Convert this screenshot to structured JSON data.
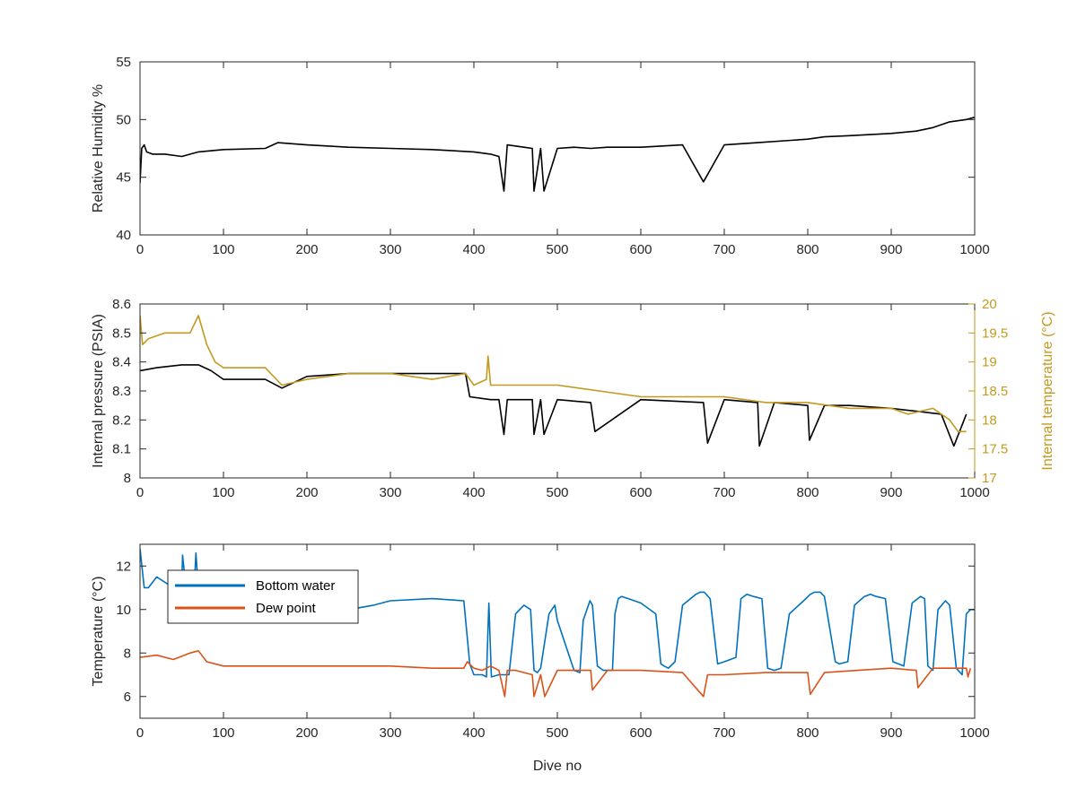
{
  "colors": {
    "black": "#000000",
    "tan": "#C39A1E",
    "blue": "#0072BD",
    "orange": "#D95319",
    "axis": "#262626"
  },
  "chart_data": [
    {
      "type": "line",
      "xlabel": "",
      "ylabel": "Relative Humidity %",
      "xlim": [
        0,
        1000
      ],
      "ylim": [
        40,
        55
      ],
      "xticks": [
        "0",
        "100",
        "200",
        "300",
        "400",
        "500",
        "600",
        "700",
        "800",
        "900",
        "1000"
      ],
      "yticks": [
        "40",
        "45",
        "50",
        "55"
      ],
      "series": [
        {
          "color": "#000000",
          "x": [
            0,
            2,
            5,
            8,
            15,
            30,
            50,
            70,
            100,
            150,
            165,
            200,
            250,
            300,
            350,
            400,
            420,
            430,
            436,
            440,
            460,
            470,
            472,
            480,
            484,
            500,
            520,
            540,
            560,
            600,
            650,
            675,
            700,
            740,
            780,
            800,
            820,
            850,
            900,
            930,
            950,
            970,
            990,
            1000
          ],
          "y": [
            44.5,
            47.5,
            47.8,
            47.2,
            47.0,
            47.0,
            46.8,
            47.2,
            47.4,
            47.5,
            48.0,
            47.8,
            47.6,
            47.5,
            47.4,
            47.2,
            47.0,
            46.8,
            43.8,
            47.8,
            47.6,
            47.5,
            43.8,
            47.5,
            43.8,
            47.5,
            47.6,
            47.5,
            47.6,
            47.6,
            47.8,
            44.6,
            47.8,
            48.0,
            48.2,
            48.3,
            48.5,
            48.6,
            48.8,
            49.0,
            49.3,
            49.8,
            50.0,
            50.2
          ]
        }
      ]
    },
    {
      "type": "line",
      "xlabel": "",
      "ylabel": "Internal pressure (PSIA)",
      "y2label": "Internal temperature (°C)",
      "xlim": [
        0,
        1000
      ],
      "ylim": [
        8,
        8.6
      ],
      "y2lim": [
        17,
        20
      ],
      "xticks": [
        "0",
        "100",
        "200",
        "300",
        "400",
        "500",
        "600",
        "700",
        "800",
        "900",
        "1000"
      ],
      "yticks": [
        "8",
        "8.1",
        "8.2",
        "8.3",
        "8.4",
        "8.5",
        "8.6"
      ],
      "y2ticks": [
        "17",
        "17.5",
        "18",
        "18.5",
        "19",
        "19.5",
        "20"
      ],
      "series": [
        {
          "axis": "left",
          "color": "#000000",
          "x": [
            0,
            20,
            50,
            70,
            85,
            100,
            150,
            170,
            200,
            250,
            300,
            350,
            390,
            395,
            420,
            430,
            436,
            440,
            470,
            472,
            480,
            484,
            500,
            540,
            545,
            600,
            675,
            680,
            700,
            740,
            742,
            760,
            800,
            802,
            820,
            850,
            900,
            930,
            960,
            975,
            990
          ],
          "y": [
            8.37,
            8.38,
            8.39,
            8.39,
            8.37,
            8.34,
            8.34,
            8.31,
            8.35,
            8.36,
            8.36,
            8.36,
            8.36,
            8.28,
            8.27,
            8.27,
            8.15,
            8.27,
            8.27,
            8.15,
            8.27,
            8.15,
            8.27,
            8.26,
            8.16,
            8.27,
            8.26,
            8.12,
            8.27,
            8.26,
            8.11,
            8.26,
            8.25,
            8.13,
            8.25,
            8.25,
            8.24,
            8.23,
            8.22,
            8.11,
            8.22
          ]
        },
        {
          "axis": "right",
          "color": "#C39A1E",
          "x": [
            0,
            3,
            10,
            30,
            60,
            70,
            80,
            90,
            100,
            150,
            170,
            200,
            250,
            300,
            350,
            390,
            400,
            415,
            417,
            420,
            450,
            500,
            550,
            600,
            650,
            700,
            750,
            800,
            850,
            900,
            920,
            950,
            970,
            980,
            990
          ],
          "y": [
            19.8,
            19.3,
            19.4,
            19.5,
            19.5,
            19.8,
            19.3,
            19.0,
            18.9,
            18.9,
            18.6,
            18.7,
            18.8,
            18.8,
            18.7,
            18.8,
            18.6,
            18.7,
            19.1,
            18.6,
            18.6,
            18.6,
            18.5,
            18.4,
            18.4,
            18.4,
            18.3,
            18.3,
            18.2,
            18.2,
            18.1,
            18.2,
            18.0,
            17.8,
            17.8
          ]
        }
      ]
    },
    {
      "type": "line",
      "xlabel": "Dive no",
      "ylabel": "Temperature (°C)",
      "xlim": [
        0,
        1000
      ],
      "ylim": [
        5,
        13
      ],
      "xticks": [
        "0",
        "100",
        "200",
        "300",
        "400",
        "500",
        "600",
        "700",
        "800",
        "900",
        "1000"
      ],
      "yticks": [
        "6",
        "8",
        "10",
        "12"
      ],
      "legend": {
        "position": "top-left"
      },
      "series": [
        {
          "name": "Bottom water",
          "color": "#0072BD",
          "x": [
            0,
            5,
            10,
            20,
            40,
            50,
            51,
            55,
            65,
            67,
            70,
            80,
            100,
            150,
            200,
            250,
            280,
            300,
            350,
            388,
            395,
            400,
            410,
            415,
            418,
            421,
            430,
            442,
            450,
            460,
            468,
            472,
            476,
            480,
            490,
            497,
            500,
            520,
            527,
            531,
            539,
            542,
            548,
            555,
            566,
            569,
            573,
            577,
            585,
            600,
            618,
            624,
            628,
            633,
            641,
            650,
            666,
            671,
            676,
            683,
            692,
            700,
            714,
            720,
            727,
            735,
            745,
            752,
            760,
            768,
            778,
            795,
            803,
            808,
            815,
            820,
            833,
            838,
            848,
            856,
            868,
            875,
            882,
            893,
            902,
            915,
            925,
            935,
            940,
            944,
            950,
            956,
            965,
            970,
            978,
            985,
            990,
            995,
            1000
          ],
          "y": [
            12.8,
            11.0,
            11.0,
            11.5,
            11.0,
            11.0,
            12.5,
            11.0,
            11.0,
            12.6,
            10.9,
            10.8,
            10.6,
            10.4,
            10.2,
            10.0,
            10.2,
            10.4,
            10.5,
            10.4,
            7.5,
            7.0,
            7.0,
            6.9,
            10.3,
            6.9,
            7.0,
            7.0,
            9.8,
            10.2,
            10.0,
            7.2,
            7.1,
            7.3,
            9.8,
            10.2,
            9.5,
            7.2,
            7.1,
            9.5,
            10.4,
            10.2,
            7.4,
            7.2,
            7.2,
            9.8,
            10.5,
            10.6,
            10.5,
            10.3,
            9.8,
            7.5,
            7.4,
            7.3,
            7.6,
            10.2,
            10.7,
            10.8,
            10.8,
            10.5,
            7.5,
            7.6,
            7.8,
            10.5,
            10.7,
            10.6,
            10.5,
            7.3,
            7.2,
            7.3,
            9.8,
            10.4,
            10.7,
            10.8,
            10.8,
            10.6,
            7.6,
            7.5,
            7.6,
            10.2,
            10.6,
            10.7,
            10.6,
            10.5,
            7.6,
            7.4,
            10.3,
            10.6,
            10.5,
            7.4,
            7.2,
            10.0,
            10.4,
            10.2,
            7.3,
            7.0,
            9.8,
            10.0,
            10.0
          ]
        },
        {
          "name": "Dew point",
          "color": "#D95319",
          "x": [
            0,
            20,
            40,
            60,
            70,
            80,
            100,
            150,
            200,
            250,
            300,
            350,
            388,
            392,
            400,
            410,
            420,
            430,
            437,
            440,
            450,
            470,
            472,
            480,
            485,
            500,
            540,
            542,
            560,
            600,
            650,
            675,
            680,
            700,
            750,
            800,
            803,
            820,
            860,
            900,
            930,
            932,
            950,
            970,
            990,
            992,
            995
          ],
          "y": [
            7.8,
            7.9,
            7.7,
            8.0,
            8.1,
            7.6,
            7.4,
            7.4,
            7.4,
            7.4,
            7.4,
            7.3,
            7.3,
            7.6,
            7.3,
            7.2,
            7.4,
            7.2,
            6.0,
            7.2,
            7.2,
            7.0,
            6.0,
            7.0,
            6.0,
            7.2,
            7.2,
            6.3,
            7.2,
            7.2,
            7.1,
            6.0,
            7.0,
            7.0,
            7.1,
            7.1,
            6.1,
            7.1,
            7.2,
            7.3,
            7.2,
            6.4,
            7.3,
            7.3,
            7.3,
            6.9,
            7.3
          ]
        }
      ]
    }
  ]
}
